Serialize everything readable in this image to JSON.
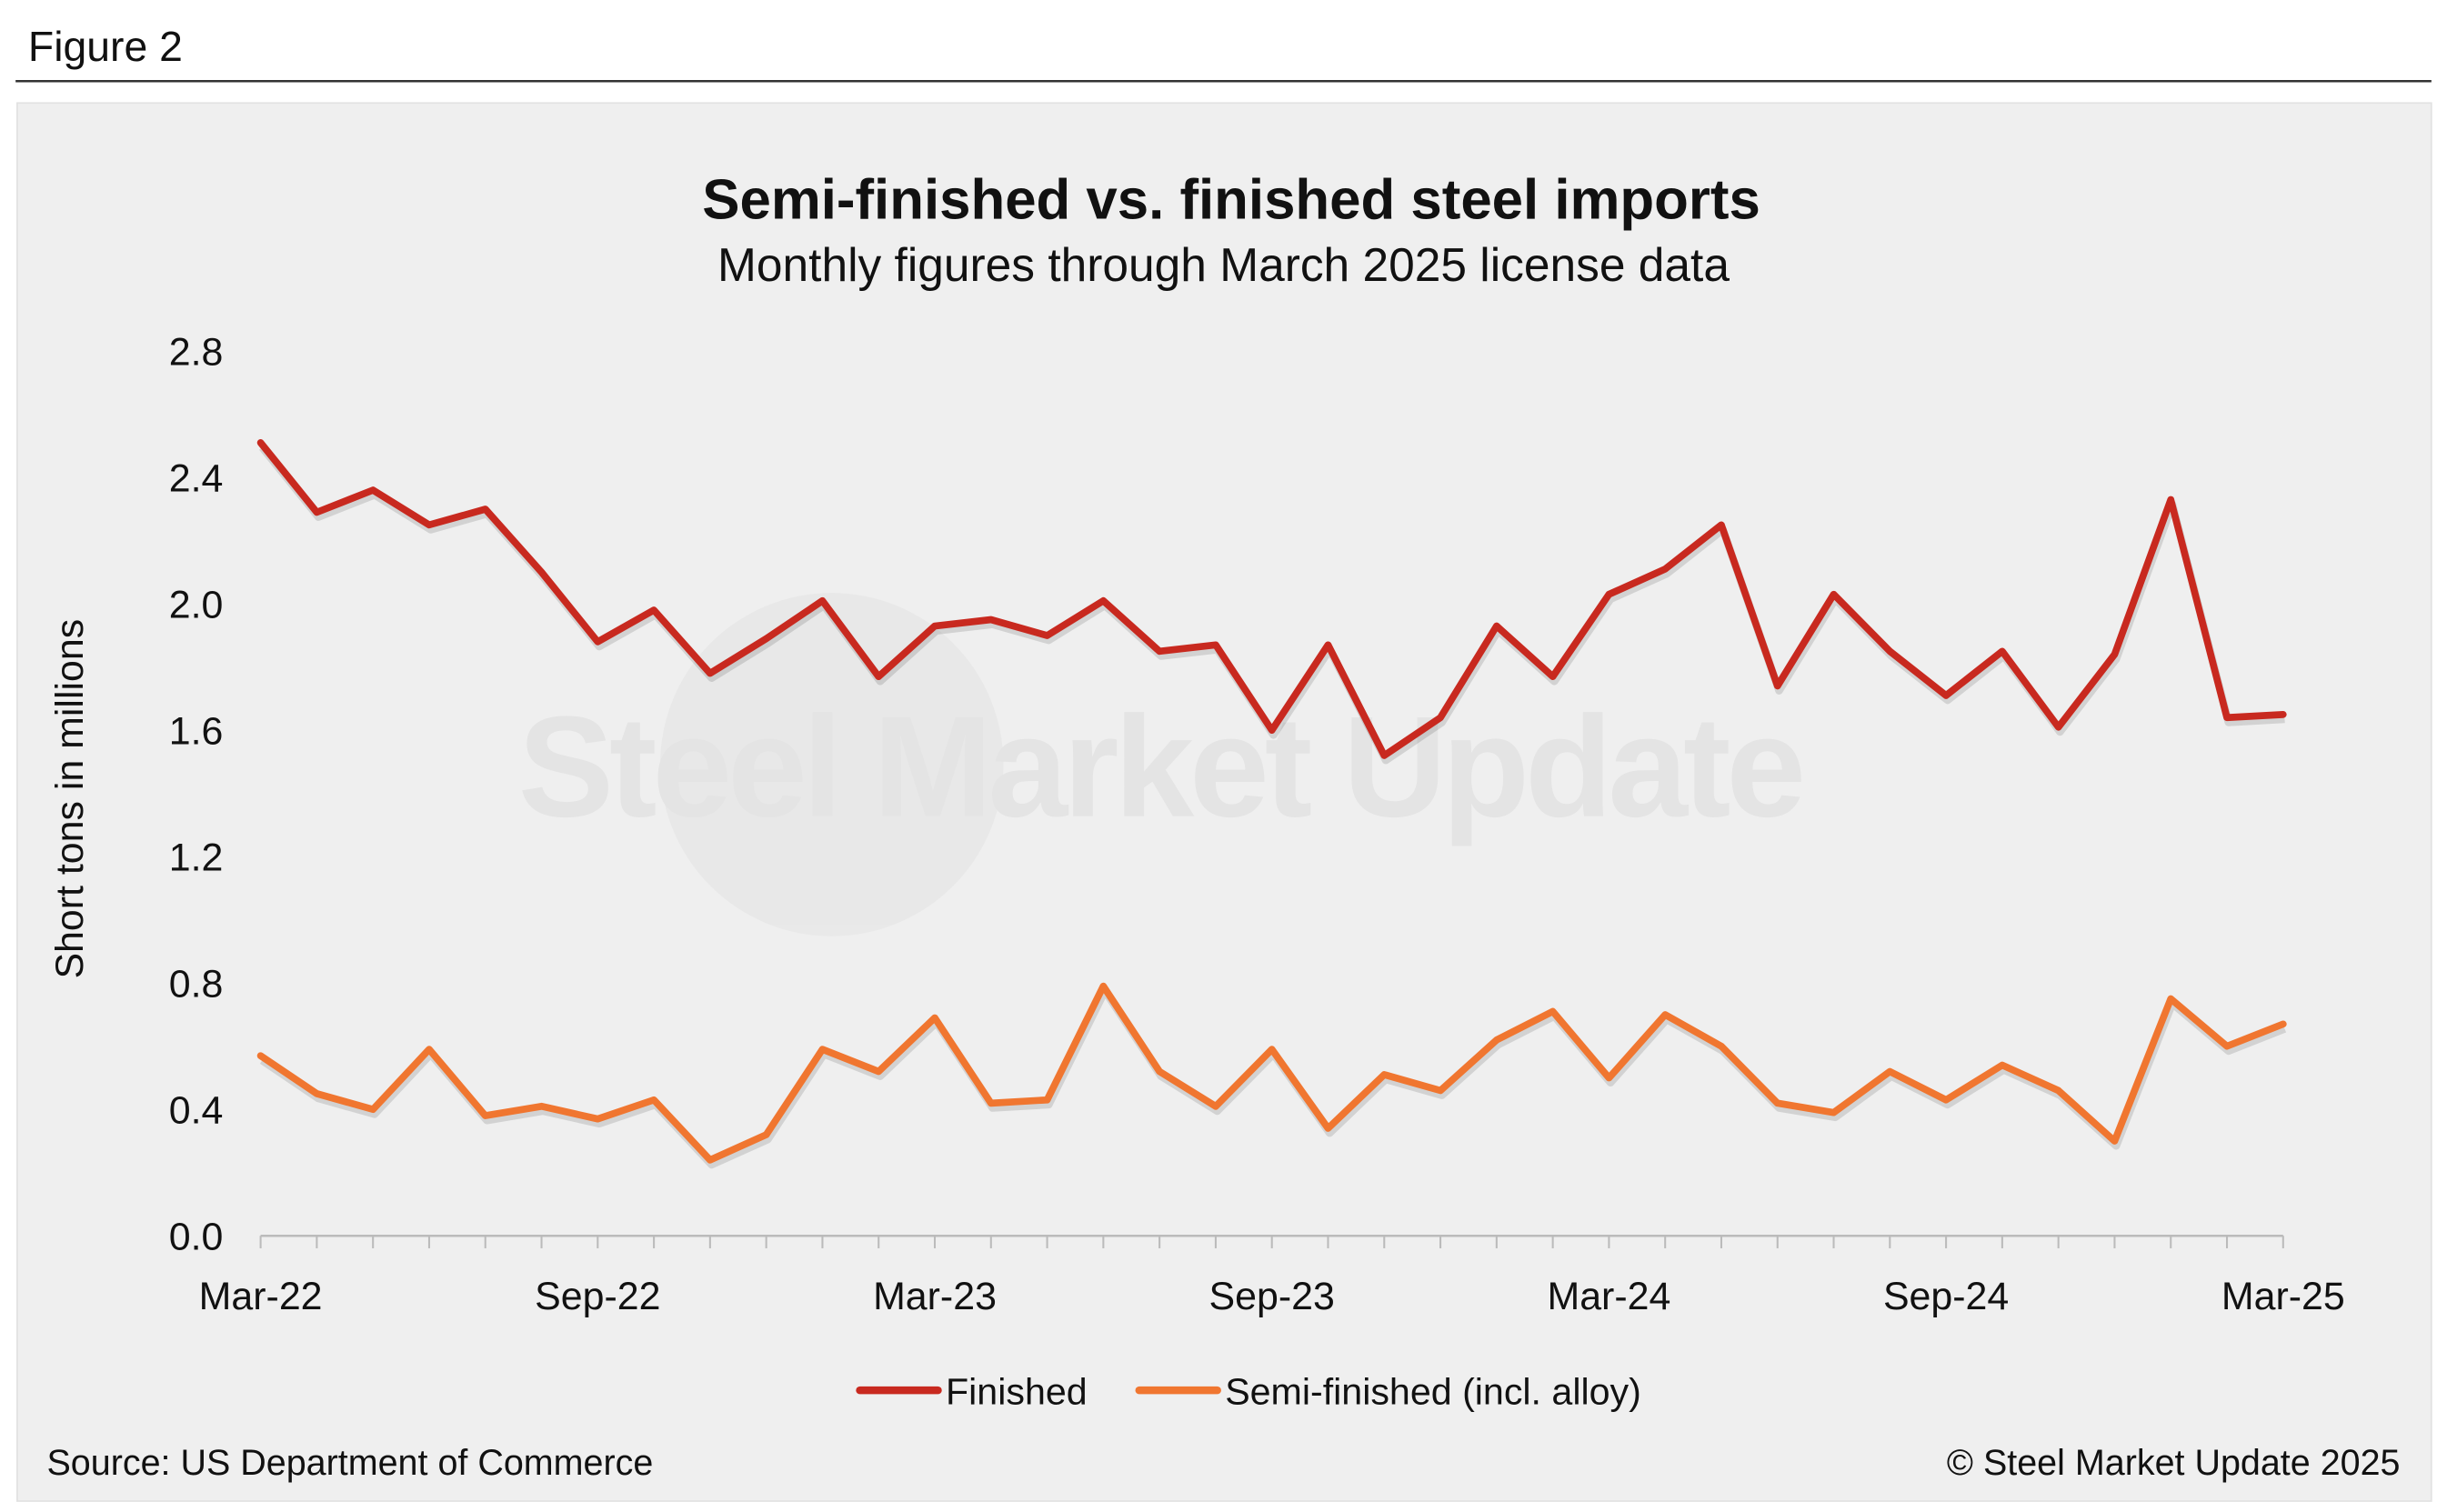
{
  "figure_label": "Figure 2",
  "watermark": "Steel Market Update",
  "source": "Source: US Department of Commerce",
  "copyright": "© Steel Market Update 2025",
  "colors": {
    "finished": "#c8291f",
    "semi": "#f07630",
    "background": "#efefef"
  },
  "chart_data": {
    "type": "line",
    "title": "Semi-finished vs. finished steel imports",
    "subtitle": "Monthly figures through March 2025 license data",
    "xlabel": "",
    "ylabel": "Short tons in millions",
    "ylim": [
      0,
      2.8
    ],
    "yticks": [
      "0.0",
      "0.4",
      "0.8",
      "1.2",
      "1.6",
      "2.0",
      "2.4",
      "2.8"
    ],
    "xtick_labels": [
      {
        "index": 0,
        "label": "Mar-22"
      },
      {
        "index": 6,
        "label": "Sep-22"
      },
      {
        "index": 12,
        "label": "Mar-23"
      },
      {
        "index": 18,
        "label": "Sep-23"
      },
      {
        "index": 24,
        "label": "Mar-24"
      },
      {
        "index": 30,
        "label": "Sep-24"
      },
      {
        "index": 36,
        "label": "Mar-25"
      }
    ],
    "x": [
      "Mar-22",
      "Apr-22",
      "May-22",
      "Jun-22",
      "Jul-22",
      "Aug-22",
      "Sep-22",
      "Oct-22",
      "Nov-22",
      "Dec-22",
      "Jan-23",
      "Feb-23",
      "Mar-23",
      "Apr-23",
      "May-23",
      "Jun-23",
      "Jul-23",
      "Aug-23",
      "Sep-23",
      "Oct-23",
      "Nov-23",
      "Dec-23",
      "Jan-24",
      "Feb-24",
      "Mar-24",
      "Apr-24",
      "May-24",
      "Jun-24",
      "Jul-24",
      "Aug-24",
      "Sep-24",
      "Oct-24",
      "Nov-24",
      "Dec-24",
      "Jan-25",
      "Feb-25",
      "Mar-25"
    ],
    "legend_position": "bottom",
    "grid": false,
    "series": [
      {
        "name": "Finished",
        "color_key": "finished",
        "values": [
          2.51,
          2.29,
          2.36,
          2.25,
          2.3,
          2.1,
          1.88,
          1.98,
          1.78,
          1.89,
          2.01,
          1.77,
          1.93,
          1.95,
          1.9,
          2.01,
          1.85,
          1.87,
          1.6,
          1.87,
          1.52,
          1.64,
          1.93,
          1.77,
          2.03,
          2.11,
          2.25,
          1.74,
          2.03,
          1.85,
          1.71,
          1.85,
          1.61,
          1.84,
          2.33,
          1.64,
          1.65
        ]
      },
      {
        "name": "Semi-finished (incl. alloy)",
        "color_key": "semi",
        "values": [
          0.57,
          0.45,
          0.4,
          0.59,
          0.38,
          0.41,
          0.37,
          0.43,
          0.24,
          0.32,
          0.59,
          0.52,
          0.69,
          0.42,
          0.43,
          0.79,
          0.52,
          0.41,
          0.59,
          0.34,
          0.51,
          0.46,
          0.62,
          0.71,
          0.5,
          0.7,
          0.6,
          0.42,
          0.39,
          0.52,
          0.43,
          0.54,
          0.46,
          0.3,
          0.75,
          0.6,
          0.67
        ]
      }
    ]
  }
}
